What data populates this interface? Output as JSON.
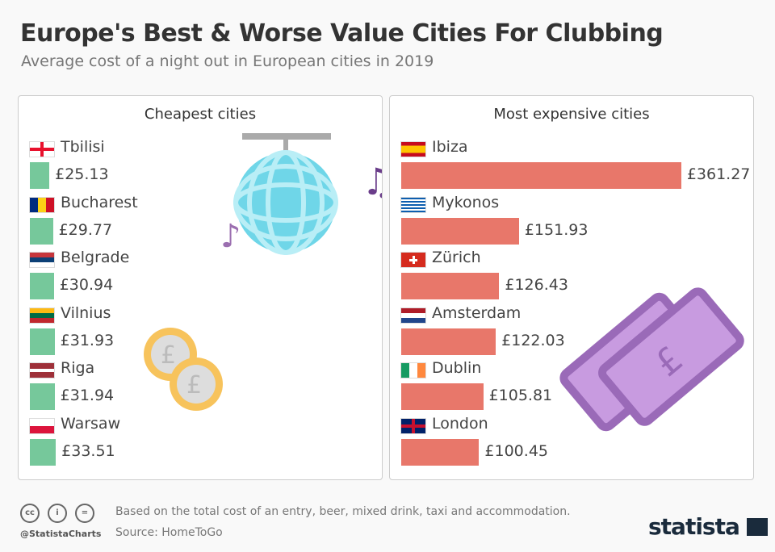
{
  "title": "Europe's Best & Worse Value Cities For Clubbing",
  "subtitle": "Average cost of a night out in European cities in 2019",
  "chart_data": [
    {
      "type": "bar",
      "title": "Cheapest cities",
      "unit": "£",
      "color": "#76c89b",
      "categories": [
        "Tbilisi",
        "Bucharest",
        "Belgrade",
        "Vilnius",
        "Riga",
        "Warsaw"
      ],
      "values": [
        25.13,
        29.77,
        30.94,
        31.93,
        31.94,
        33.51
      ],
      "labels": [
        "£25.13",
        "£29.77",
        "£30.94",
        "£31.93",
        "£31.94",
        "£33.51"
      ],
      "flags": [
        "georgia",
        "romania",
        "serbia",
        "lithuania",
        "latvia",
        "poland"
      ]
    },
    {
      "type": "bar",
      "title": "Most expensive cities",
      "unit": "£",
      "color": "#e8776a",
      "categories": [
        "Ibiza",
        "Mykonos",
        "Zürich",
        "Amsterdam",
        "Dublin",
        "London"
      ],
      "values": [
        361.27,
        151.93,
        126.43,
        122.03,
        105.81,
        100.45
      ],
      "labels": [
        "£361.27",
        "£151.93",
        "£126.43",
        "£122.03",
        "£105.81",
        "£100.45"
      ],
      "flags": [
        "spain",
        "greece",
        "switzerland",
        "netherlands",
        "ireland",
        "uk"
      ]
    }
  ],
  "footer": {
    "note": "Based on the total cost of an entry, beer, mixed drink, taxi and accommodation.",
    "source": "Source: HomeToGo",
    "handle": "@StatistaCharts",
    "logo": "statista"
  }
}
